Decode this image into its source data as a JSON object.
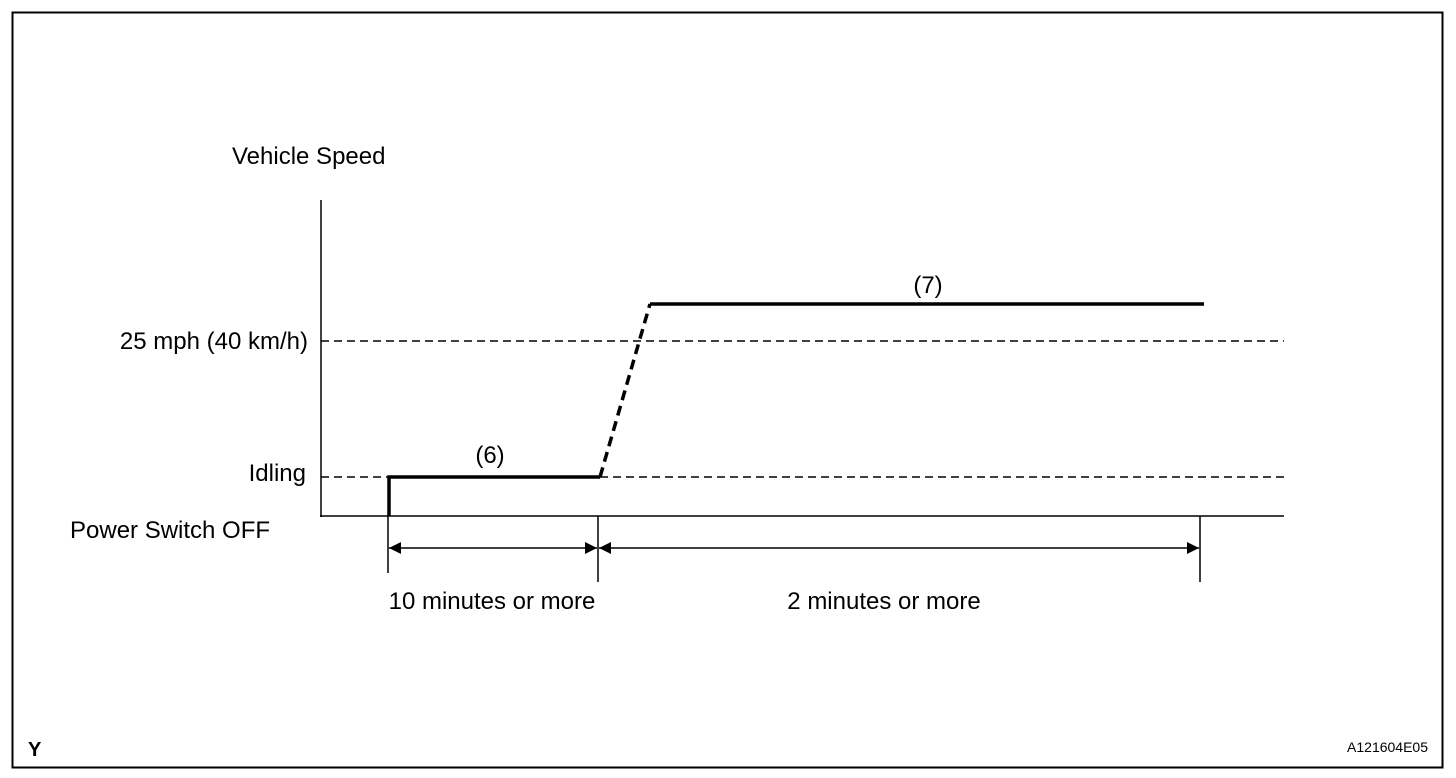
{
  "y_axis_title": "Vehicle Speed",
  "levels": {
    "speed": "25 mph (40 km/h)",
    "idling": "Idling",
    "off": "Power Switch OFF"
  },
  "steps": {
    "step6": "(6)",
    "step7": "(7)"
  },
  "durations": {
    "first": "10 minutes or more",
    "second": "2 minutes or more"
  },
  "corner_mark": "Y",
  "figure_id": "A121604E05"
}
